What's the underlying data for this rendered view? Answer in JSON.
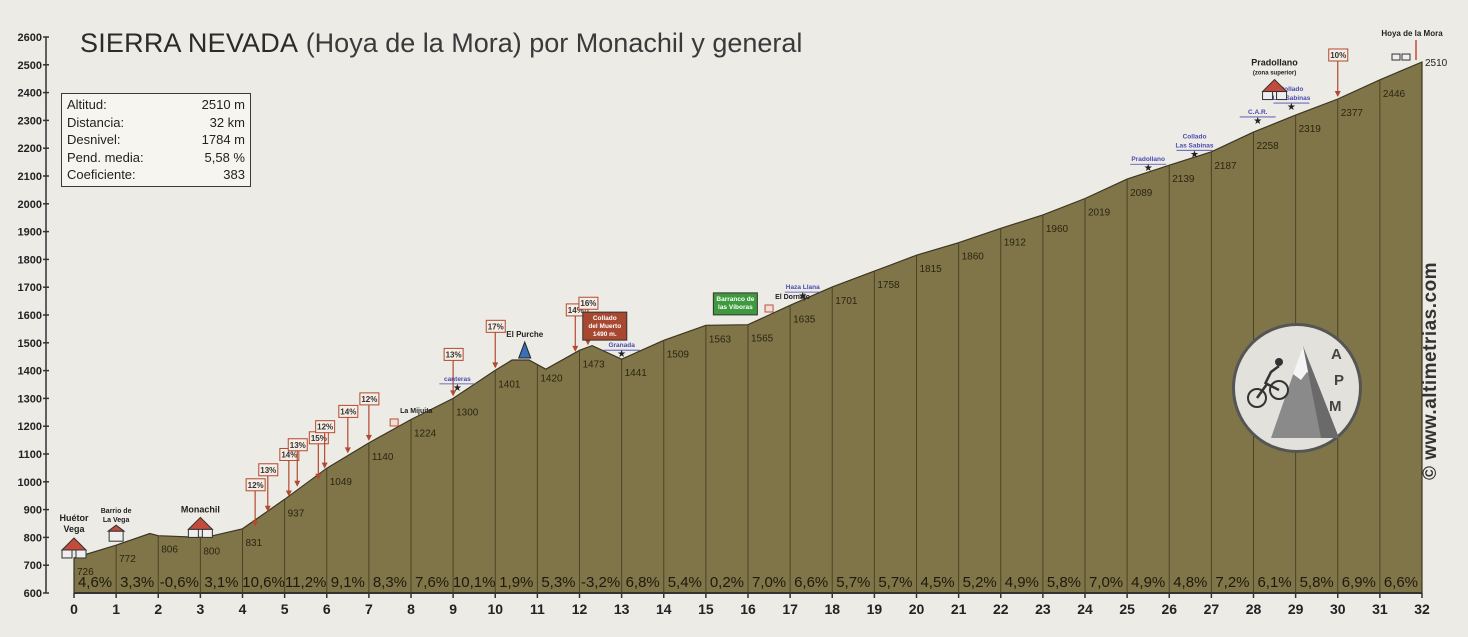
{
  "title": {
    "main": "SIERRA NEVADA",
    "sub": "(Hoya de la Mora) por Monachil y general"
  },
  "stats": [
    {
      "label": "Altitud:",
      "value": "2510 m"
    },
    {
      "label": "Distancia:",
      "value": "32 km"
    },
    {
      "label": "Desnivel:",
      "value": "1784 m"
    },
    {
      "label": "Pend. media:",
      "value": "5,58 %"
    },
    {
      "label": "Coeficiente:",
      "value": "383"
    }
  ],
  "website": "© www.altimetrias.com",
  "logo_letters": [
    "A",
    "P",
    "M"
  ],
  "colors": {
    "fill": "#7f7548",
    "fill_dark": "#5f5634",
    "axis": "#333333",
    "grade_box": "#b24a30",
    "marker_blue": "#4a4ab0",
    "marker_green": "#3f9a3f",
    "marker_red_box": "#a84830"
  },
  "chart_data": {
    "type": "area",
    "title": "SIERRA NEVADA (Hoya de la Mora) por Monachil y general",
    "xlabel": "",
    "ylabel": "",
    "xlim": [
      0,
      32
    ],
    "ylim": [
      600,
      2600
    ],
    "x_ticks": [
      0,
      1,
      2,
      3,
      4,
      5,
      6,
      7,
      8,
      9,
      10,
      11,
      12,
      13,
      14,
      15,
      16,
      17,
      18,
      19,
      20,
      21,
      22,
      23,
      24,
      25,
      26,
      27,
      28,
      29,
      30,
      31,
      32
    ],
    "y_ticks": [
      600,
      700,
      800,
      900,
      1000,
      1100,
      1200,
      1300,
      1400,
      1500,
      1600,
      1700,
      1800,
      1900,
      2000,
      2100,
      2200,
      2300,
      2400,
      2500,
      2600
    ],
    "profile": [
      {
        "km": 0,
        "alt": 726
      },
      {
        "km": 1,
        "alt": 772
      },
      {
        "km": 1.8,
        "alt": 814
      },
      {
        "km": 2,
        "alt": 806
      },
      {
        "km": 3,
        "alt": 800
      },
      {
        "km": 3.3,
        "alt": 806
      },
      {
        "km": 4,
        "alt": 831
      },
      {
        "km": 5,
        "alt": 937
      },
      {
        "km": 6,
        "alt": 1049
      },
      {
        "km": 7,
        "alt": 1140
      },
      {
        "km": 8,
        "alt": 1224
      },
      {
        "km": 9,
        "alt": 1300
      },
      {
        "km": 10,
        "alt": 1401
      },
      {
        "km": 10.4,
        "alt": 1438
      },
      {
        "km": 10.8,
        "alt": 1438
      },
      {
        "km": 11.2,
        "alt": 1405
      },
      {
        "km": 12,
        "alt": 1473
      },
      {
        "km": 12.3,
        "alt": 1490
      },
      {
        "km": 13,
        "alt": 1441
      },
      {
        "km": 14,
        "alt": 1509
      },
      {
        "km": 15,
        "alt": 1563
      },
      {
        "km": 16,
        "alt": 1565
      },
      {
        "km": 17,
        "alt": 1635
      },
      {
        "km": 18,
        "alt": 1701
      },
      {
        "km": 19,
        "alt": 1758
      },
      {
        "km": 20,
        "alt": 1815
      },
      {
        "km": 21,
        "alt": 1860
      },
      {
        "km": 22,
        "alt": 1912
      },
      {
        "km": 23,
        "alt": 1960
      },
      {
        "km": 24,
        "alt": 2019
      },
      {
        "km": 25,
        "alt": 2089
      },
      {
        "km": 26,
        "alt": 2139
      },
      {
        "km": 27,
        "alt": 2187
      },
      {
        "km": 28,
        "alt": 2258
      },
      {
        "km": 29,
        "alt": 2319
      },
      {
        "km": 30,
        "alt": 2377
      },
      {
        "km": 31,
        "alt": 2446
      },
      {
        "km": 32,
        "alt": 2510
      }
    ],
    "altitude_labels": [
      {
        "km": 0,
        "label": "726"
      },
      {
        "km": 1,
        "label": "772"
      },
      {
        "km": 2,
        "label": "806"
      },
      {
        "km": 3,
        "label": "800"
      },
      {
        "km": 4,
        "label": "831"
      },
      {
        "km": 5,
        "label": "937"
      },
      {
        "km": 6,
        "label": "1049"
      },
      {
        "km": 7,
        "label": "1140"
      },
      {
        "km": 8,
        "label": "1224"
      },
      {
        "km": 9,
        "label": "1300"
      },
      {
        "km": 10,
        "label": "1401"
      },
      {
        "km": 11,
        "label": "1420"
      },
      {
        "km": 12,
        "label": "1473"
      },
      {
        "km": 13,
        "label": "1441"
      },
      {
        "km": 14,
        "label": "1509"
      },
      {
        "km": 15,
        "label": "1563"
      },
      {
        "km": 16,
        "label": "1565"
      },
      {
        "km": 17,
        "label": "1635"
      },
      {
        "km": 18,
        "label": "1701"
      },
      {
        "km": 19,
        "label": "1758"
      },
      {
        "km": 20,
        "label": "1815"
      },
      {
        "km": 21,
        "label": "1860"
      },
      {
        "km": 22,
        "label": "1912"
      },
      {
        "km": 23,
        "label": "1960"
      },
      {
        "km": 24,
        "label": "2019"
      },
      {
        "km": 25,
        "label": "2089"
      },
      {
        "km": 26,
        "label": "2139"
      },
      {
        "km": 27,
        "label": "2187"
      },
      {
        "km": 28,
        "label": "2258"
      },
      {
        "km": 29,
        "label": "2319"
      },
      {
        "km": 30,
        "label": "2377"
      },
      {
        "km": 31,
        "label": "2446"
      },
      {
        "km": 32,
        "label": "2510"
      }
    ],
    "segment_grades": [
      "4,6%",
      "3,3%",
      "-0,6%",
      "3,1%",
      "10,6%",
      "11,2%",
      "9,1%",
      "8,3%",
      "7,6%",
      "10,1%",
      "1,9%",
      "5,3%",
      "-3,2%",
      "6,8%",
      "5,4%",
      "0,2%",
      "7,0%",
      "6,6%",
      "5,7%",
      "5,7%",
      "4,5%",
      "5,2%",
      "4,9%",
      "5,8%",
      "7,0%",
      "4,9%",
      "4,8%",
      "7,2%",
      "6,1%",
      "5,8%",
      "6,9%",
      "6,6%"
    ],
    "max_grades": [
      {
        "km": 4.3,
        "alt": 831,
        "label": "12%"
      },
      {
        "km": 4.6,
        "alt": 885,
        "label": "13%"
      },
      {
        "km": 5.1,
        "alt": 940,
        "label": "14%"
      },
      {
        "km": 5.3,
        "alt": 975,
        "label": "13%"
      },
      {
        "km": 5.8,
        "alt": 1000,
        "label": "15%"
      },
      {
        "km": 5.95,
        "alt": 1040,
        "label": "12%"
      },
      {
        "km": 6.5,
        "alt": 1095,
        "label": "14%"
      },
      {
        "km": 7.0,
        "alt": 1140,
        "label": "12%"
      },
      {
        "km": 9.0,
        "alt": 1300,
        "label": "13%"
      },
      {
        "km": 10.0,
        "alt": 1401,
        "label": "17%"
      },
      {
        "km": 11.9,
        "alt": 1460,
        "label": "14%"
      },
      {
        "km": 12.2,
        "alt": 1484,
        "label": "16%"
      },
      {
        "km": 30.0,
        "alt": 2377,
        "label": "10%"
      }
    ],
    "places": [
      {
        "km": 0,
        "alt": 726,
        "label": "Huétor",
        "label2": "Vega",
        "kind": "town"
      },
      {
        "km": 1,
        "alt": 772,
        "label": "Barrio de",
        "label2": "La Vega",
        "kind": "village"
      },
      {
        "km": 3,
        "alt": 800,
        "label": "Monachil",
        "label2": "",
        "kind": "town"
      },
      {
        "km": 7.6,
        "alt": 1190,
        "label": "La Mijuita",
        "label2": "",
        "kind": "house"
      },
      {
        "km": 9.1,
        "alt": 1320,
        "label": "canteras",
        "label2": "",
        "kind": "star-blue"
      },
      {
        "km": 10.7,
        "alt": 1438,
        "label": "El Purche",
        "label2": "",
        "kind": "peak"
      },
      {
        "km": 13.0,
        "alt": 1441,
        "label": "Granada",
        "label2": "",
        "kind": "star-blue"
      },
      {
        "km": 16.5,
        "alt": 1600,
        "label": "El Dornajo",
        "label2": "",
        "kind": "house"
      },
      {
        "km": 17.3,
        "alt": 1650,
        "label": "Haza Llana",
        "label2": "",
        "kind": "star-blue"
      },
      {
        "km": 25.5,
        "alt": 2110,
        "label": "Pradollano",
        "label2": "",
        "kind": "star-blue"
      },
      {
        "km": 26.6,
        "alt": 2160,
        "label": "Collado",
        "label2": "Las Sabinas",
        "kind": "star-blue"
      },
      {
        "km": 28.1,
        "alt": 2280,
        "label": "C.A.R.",
        "label2": "",
        "kind": "star-blue"
      },
      {
        "km": 28.9,
        "alt": 2330,
        "label": "Collado",
        "label2": "Las Sabinas",
        "kind": "star-blue"
      },
      {
        "km": 28.5,
        "alt": 2375,
        "label": "Pradollano",
        "label2": "(zona superior)",
        "kind": "town"
      },
      {
        "km": 32,
        "alt": 2510,
        "label": "Hoya de la Mora",
        "label2": "",
        "kind": "summit"
      }
    ],
    "boxes": [
      {
        "km": 12.6,
        "alt": 1560,
        "label": "Collado",
        "label2": "del Muerto",
        "label3": "1490 m.",
        "kind": "red"
      },
      {
        "km": 15.7,
        "alt": 1640,
        "label": "Barranco de",
        "label2": "las Víboras",
        "label3": "",
        "kind": "green"
      }
    ]
  }
}
